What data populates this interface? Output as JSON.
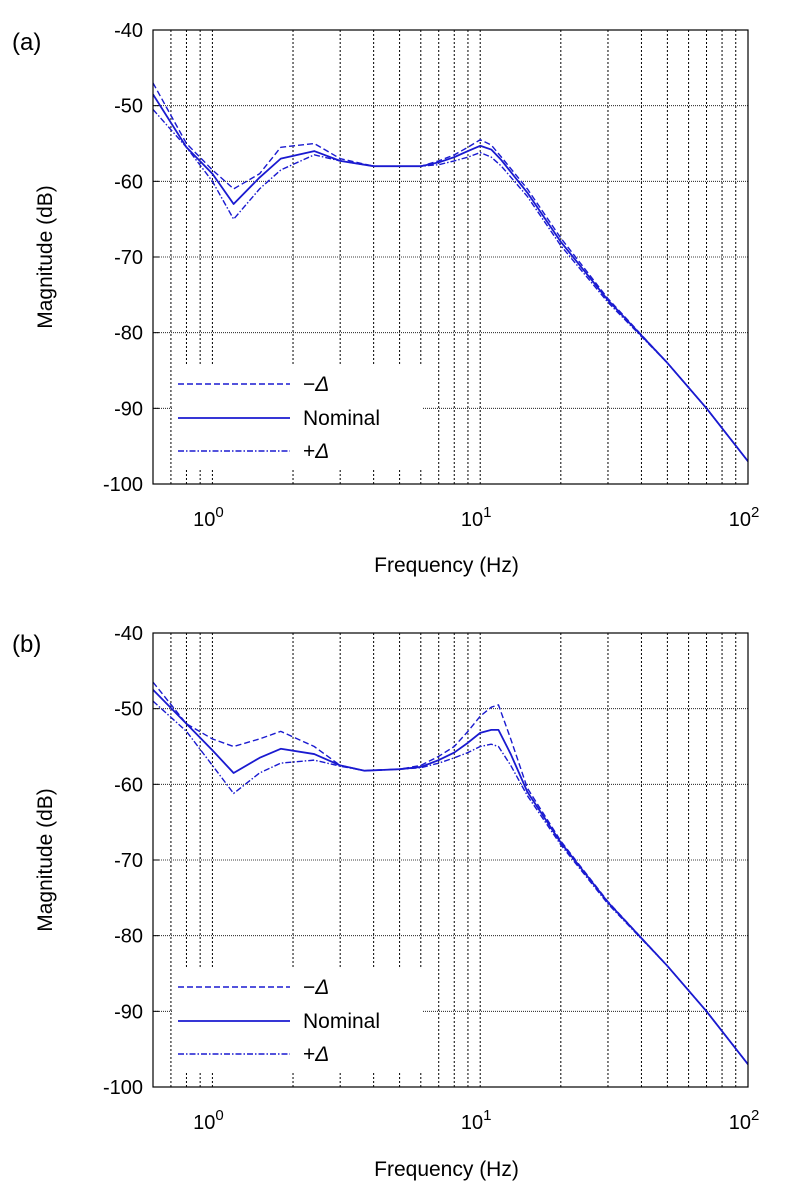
{
  "chart_data": [
    {
      "type": "line",
      "panel_label": "(a)",
      "xlabel": "Frequency  (Hz)",
      "ylabel": "Magnitude (dB)",
      "xscale": "log",
      "xlim": [
        0.6,
        100
      ],
      "ylim": [
        -100,
        -40
      ],
      "yticks": [
        -40,
        -50,
        -60,
        -70,
        -80,
        -90,
        -100
      ],
      "ytick_labels": [
        "-40",
        "-50",
        "-60",
        "-70",
        "-80",
        "-90",
        "-100"
      ],
      "xticks": [
        1,
        10,
        100
      ],
      "xtick_labels": [
        {
          "base": "10",
          "exp": "0"
        },
        {
          "base": "10",
          "exp": "1"
        },
        {
          "base": "10",
          "exp": "2"
        }
      ],
      "grid": true,
      "legend_position": "lower-left",
      "colors": {
        "line": "#1a1ad0",
        "grid": "#000000"
      },
      "series": [
        {
          "name": "−Δ",
          "style": "dashed",
          "x": [
            0.6,
            0.8,
            1.0,
            1.2,
            1.5,
            1.8,
            2.4,
            3.0,
            4.0,
            5.0,
            6.0,
            7.0,
            8.0,
            9.0,
            10.0,
            11.0,
            12.0,
            15.0,
            20.0,
            30.0,
            50.0,
            70.0,
            100.0
          ],
          "y": [
            -47,
            -55,
            -58.5,
            -61,
            -59,
            -55.5,
            -55,
            -57,
            -58,
            -58,
            -58,
            -57.3,
            -56.5,
            -55.5,
            -54.5,
            -55.2,
            -56.8,
            -61,
            -67.5,
            -75.5,
            -84,
            -90,
            -97
          ]
        },
        {
          "name": "Nominal",
          "style": "solid",
          "x": [
            0.6,
            0.8,
            1.0,
            1.2,
            1.5,
            1.8,
            2.4,
            3.0,
            4.0,
            5.0,
            6.0,
            7.0,
            8.0,
            9.0,
            10.0,
            11.0,
            12.0,
            15.0,
            20.0,
            30.0,
            50.0,
            70.0,
            100.0
          ],
          "y": [
            -48.5,
            -55.5,
            -59,
            -63,
            -59.5,
            -57,
            -56,
            -57.3,
            -58,
            -58,
            -58,
            -57.5,
            -56.8,
            -56,
            -55.3,
            -55.8,
            -57.2,
            -61.5,
            -68,
            -75.7,
            -84,
            -90,
            -97
          ]
        },
        {
          "name": "+Δ",
          "style": "dashdot",
          "x": [
            0.6,
            0.8,
            1.0,
            1.2,
            1.5,
            1.8,
            2.4,
            3.0,
            4.0,
            5.0,
            6.0,
            7.0,
            8.0,
            9.0,
            10.0,
            11.0,
            12.0,
            15.0,
            20.0,
            30.0,
            50.0,
            70.0,
            100.0
          ],
          "y": [
            -50.5,
            -55.5,
            -60,
            -65,
            -61,
            -58.5,
            -56.5,
            -57.3,
            -58,
            -58,
            -58,
            -57.8,
            -57.3,
            -56.8,
            -56.2,
            -56.8,
            -58,
            -62,
            -68.5,
            -76,
            -84,
            -90,
            -97
          ]
        }
      ]
    },
    {
      "type": "line",
      "panel_label": "(b)",
      "xlabel": "Frequency  (Hz)",
      "ylabel": "Magnitude (dB)",
      "xscale": "log",
      "xlim": [
        0.6,
        100
      ],
      "ylim": [
        -100,
        -40
      ],
      "yticks": [
        -40,
        -50,
        -60,
        -70,
        -80,
        -90,
        -100
      ],
      "ytick_labels": [
        "-40",
        "-50",
        "-60",
        "-70",
        "-80",
        "-90",
        "-100"
      ],
      "xticks": [
        1,
        10,
        100
      ],
      "xtick_labels": [
        {
          "base": "10",
          "exp": "0"
        },
        {
          "base": "10",
          "exp": "1"
        },
        {
          "base": "10",
          "exp": "2"
        }
      ],
      "grid": true,
      "legend_position": "lower-left",
      "colors": {
        "line": "#1a1ad0",
        "grid": "#000000"
      },
      "series": [
        {
          "name": "−Δ",
          "style": "dashed",
          "x": [
            0.6,
            0.8,
            1.0,
            1.2,
            1.5,
            1.8,
            2.4,
            3.0,
            3.7,
            5.0,
            6.0,
            7.0,
            8.0,
            9.0,
            10.0,
            11.0,
            11.7,
            13.0,
            15.0,
            20.0,
            30.0,
            50.0,
            70.0,
            100.0
          ],
          "y": [
            -46.5,
            -52,
            -54,
            -55,
            -54,
            -53,
            -55,
            -57.5,
            -58.2,
            -58,
            -57.5,
            -56.3,
            -55,
            -53,
            -51,
            -49.8,
            -49.5,
            -54,
            -60.5,
            -67.5,
            -75.5,
            -84,
            -90,
            -97
          ]
        },
        {
          "name": "Nominal",
          "style": "solid",
          "x": [
            0.6,
            0.8,
            1.0,
            1.2,
            1.5,
            1.8,
            2.4,
            3.0,
            3.7,
            5.0,
            6.0,
            7.0,
            8.0,
            9.0,
            10.0,
            11.0,
            11.7,
            13.0,
            15.0,
            20.0,
            30.0,
            50.0,
            70.0,
            100.0
          ],
          "y": [
            -47.5,
            -52,
            -55.5,
            -58.5,
            -56.5,
            -55.3,
            -56,
            -57.5,
            -58.2,
            -58,
            -57.7,
            -56.8,
            -55.8,
            -54.5,
            -53.2,
            -52.8,
            -52.8,
            -56,
            -61,
            -67.7,
            -75.6,
            -84,
            -90,
            -97
          ]
        },
        {
          "name": "+Δ",
          "style": "dashdot",
          "x": [
            0.6,
            0.8,
            1.0,
            1.2,
            1.5,
            1.8,
            2.4,
            3.0,
            3.7,
            5.0,
            6.0,
            7.0,
            8.0,
            9.0,
            10.0,
            11.0,
            11.7,
            13.0,
            15.0,
            20.0,
            30.0,
            50.0,
            70.0,
            100.0
          ],
          "y": [
            -49,
            -53,
            -57.5,
            -61.2,
            -58.5,
            -57.2,
            -56.8,
            -57.6,
            -58.2,
            -58,
            -57.8,
            -57.2,
            -56.5,
            -55.8,
            -55,
            -54.7,
            -55,
            -57.5,
            -61.5,
            -68,
            -75.8,
            -84,
            -90,
            -97
          ]
        }
      ]
    }
  ]
}
